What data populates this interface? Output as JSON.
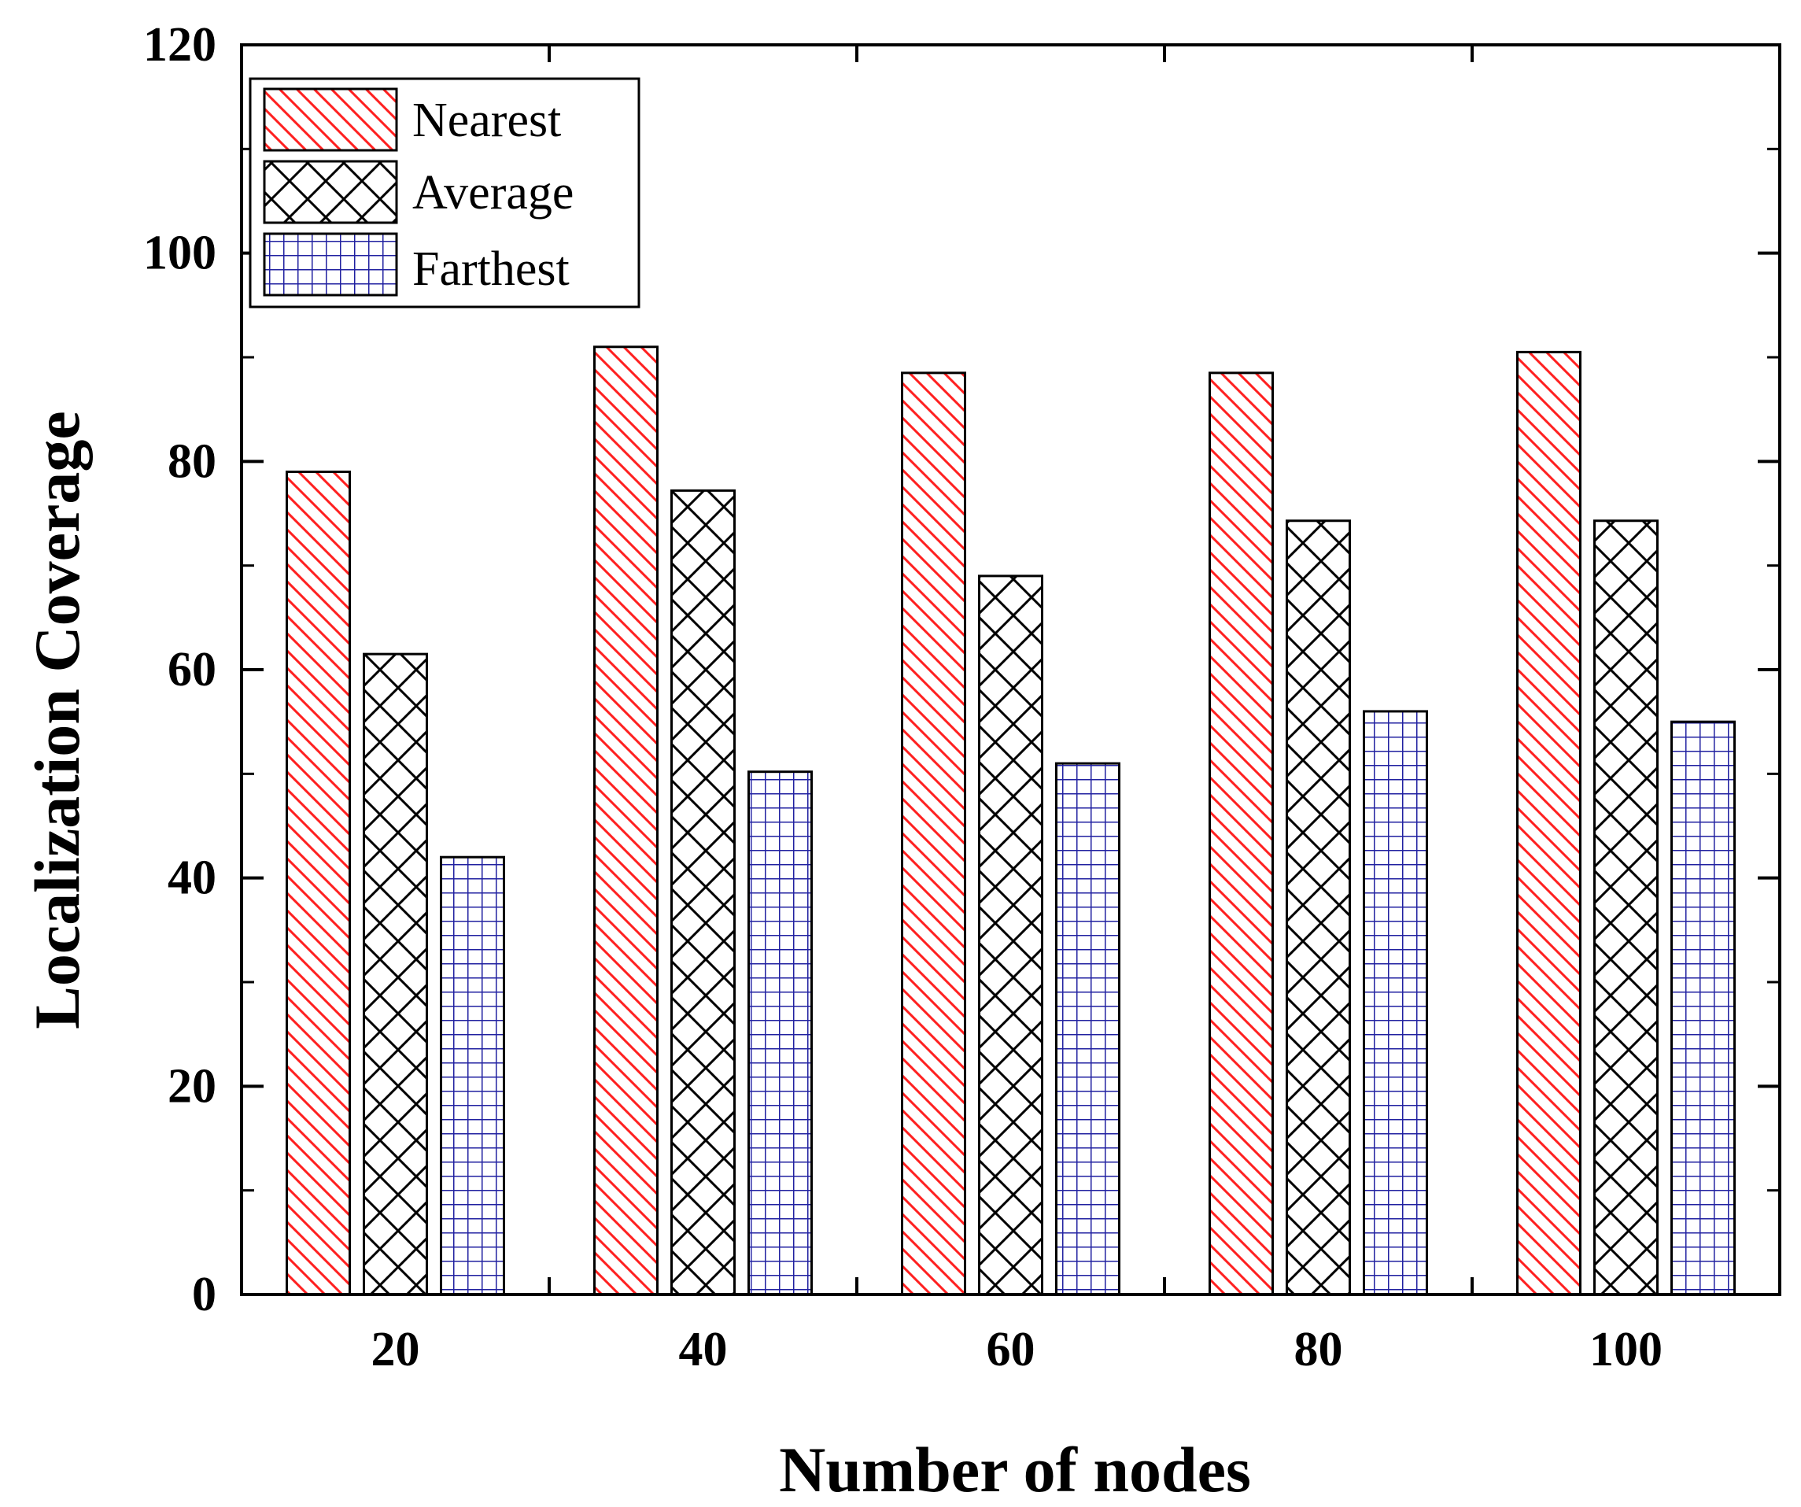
{
  "chart_data": {
    "type": "bar",
    "title": "",
    "xlabel": "Number of nodes",
    "ylabel": "Localization Coverage",
    "categories": [
      "20",
      "40",
      "60",
      "80",
      "100"
    ],
    "series": [
      {
        "name": "Nearest",
        "values": [
          79,
          91,
          88.5,
          88.5,
          90.5
        ],
        "color": "#ff2020",
        "pattern": "diagonal-hatch"
      },
      {
        "name": "Average",
        "values": [
          61.5,
          77.2,
          69,
          74.3,
          74.3
        ],
        "color": "#000000",
        "pattern": "cross-hatch"
      },
      {
        "name": "Farthest",
        "values": [
          42,
          50.2,
          51,
          56,
          55
        ],
        "color": "#2020a0",
        "pattern": "grid"
      }
    ],
    "ylim": [
      0,
      120
    ],
    "yticks": [
      0,
      20,
      40,
      60,
      80,
      100,
      120
    ],
    "grid": false,
    "legend_position": "top-left"
  }
}
